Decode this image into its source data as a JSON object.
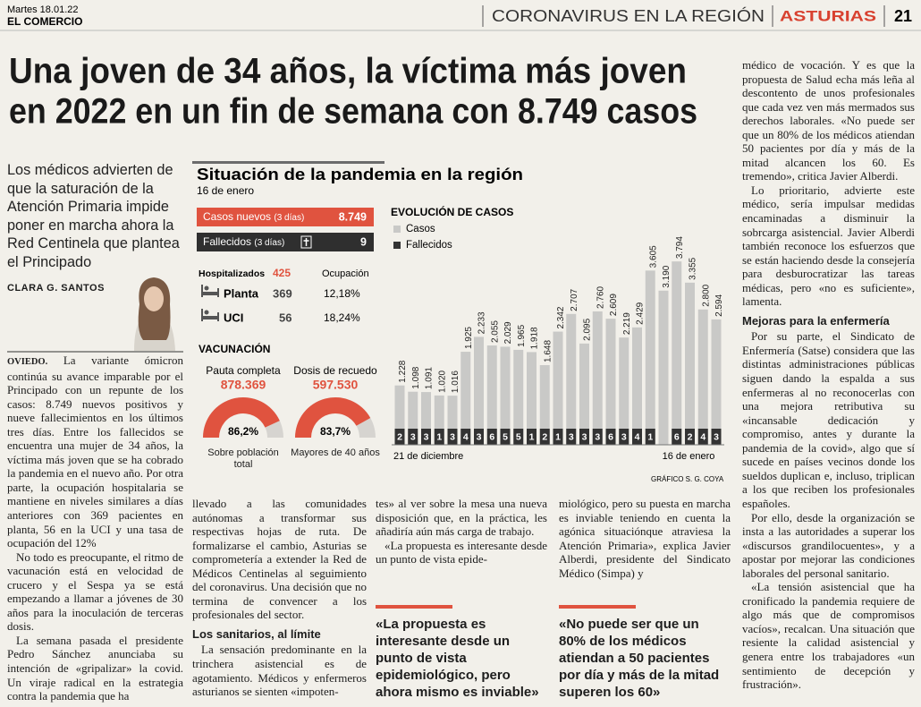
{
  "header": {
    "date": "Martes 18.01.22",
    "paper": "EL COMERCIO",
    "section": "CORONAVIRUS EN LA REGIÓN",
    "region": "ASTURIAS",
    "page": "21"
  },
  "headline": [
    "Una joven de 34 años, la víctima más joven",
    "en 2022 en un fin de semana con 8.749 casos"
  ],
  "deck": "Los médicos advierten de que la saturación de la Atención Primaria impide poner en marcha ahora la Red Centinela que plantea el Principado",
  "byline": "CLARA G. SANTOS",
  "infographic": {
    "title": "Situación de la pandemia en la región",
    "date": "16 de enero",
    "new_cases": {
      "label": "Casos nuevos",
      "period": "(3 días)",
      "value": "8.749"
    },
    "deaths": {
      "label": "Fallecidos",
      "period": "(3 días)",
      "value": "9"
    },
    "hospital": {
      "label": "Hospitalizados",
      "total": "425",
      "occupancy_label": "Ocupación",
      "rows": [
        {
          "label": "Planta",
          "patients": "369",
          "occupancy": "12,18%"
        },
        {
          "label": "UCI",
          "patients": "56",
          "occupancy": "18,24%"
        }
      ]
    },
    "vaccination": {
      "title": "VACUNACIÓN",
      "items": [
        {
          "label": "Pauta completa",
          "count": "878.369",
          "percent": 86.2,
          "percent_label": "86,2%",
          "caption": "Sobre población total"
        },
        {
          "label": "Dosis de recuedo",
          "count": "597.530",
          "percent": 83.7,
          "percent_label": "83,7%",
          "caption": "Mayores de 40 años"
        }
      ]
    },
    "credit": "GRÁFICO S. G. COYA"
  },
  "chart_data": {
    "type": "bar",
    "title": "EVOLUCIÓN DE CASOS",
    "series": [
      {
        "name": "Casos",
        "color": "#c9c9c7",
        "values": [
          1228,
          1098,
          1091,
          1020,
          1016,
          1925,
          2233,
          2055,
          2029,
          1965,
          1918,
          1648,
          2342,
          2707,
          2095,
          2760,
          2609,
          2219,
          2429,
          3605,
          3190,
          3794,
          3355,
          2800,
          2594
        ],
        "value_labels": [
          "1.228",
          "1.098",
          "1.091",
          "1.020",
          "1.016",
          "1.925",
          "2.233",
          "2.055",
          "2.029",
          "1.965",
          "1.918",
          "1.648",
          "2.342",
          "2.707",
          "2.095",
          "2.760",
          "2.609",
          "2.219",
          "2.429",
          "3.605",
          "3.190",
          "3.794",
          "3.355",
          "2.800",
          "2.594"
        ]
      },
      {
        "name": "Fallecidos",
        "color": "#333333",
        "values": [
          2,
          3,
          3,
          1,
          3,
          4,
          3,
          6,
          5,
          5,
          1,
          2,
          1,
          3,
          3,
          3,
          6,
          3,
          4,
          1,
          null,
          6,
          2,
          4,
          3
        ]
      }
    ],
    "ylim": [
      0,
      4000
    ],
    "annotations": [
      "21 de diciembre",
      "16 de enero"
    ]
  },
  "columns": {
    "col1": [
      {
        "dateline": "OVIEDO.",
        "text": "La variante ómicron continúa su avance imparable por el Principado con un repunte de los casos: 8.749 nuevos positivos y nueve fallecimientos en los últimos tres días. Entre los fallecidos se encuentra una mujer de 34 años, la víctima más joven que se ha cobrado la pandemia en el nuevo año. Por otra parte, la ocupación hospitalaria se mantiene en niveles similares a días anteriores con 369 pacientes en planta, 56 en la UCI y una tasa de ocupación del 12%"
      },
      "No todo es preocupante, el ritmo de vacunación está en velocidad de crucero y el Sespa ya se está empezando a llamar a jóvenes de 30 años para la inoculación de terceras dosis.",
      "La semana pasada el presidente Pedro Sánchez anunciaba su intención de «gripalizar» la covid. Un viraje radical en la estrategia contra la pandemia que ha"
    ],
    "col2": [
      {
        "continued": "llevado a las comunidades autónomas a transformar sus respectivas hojas de ruta. De formalizarse el cambio, Asturias se comprometería a extender la Red de Médicos Centinelas al seguimiento del coronavirus. Una decisión que no termina de convencer a los profesionales del sector."
      },
      {
        "heading": "Los sanitarios, al límite"
      },
      "La sensación predominante en la trinchera asistencial es de agotamiento. Médicos y enfermeros asturianos se sienten «impoten-"
    ],
    "col3": [
      {
        "continued": "tes» al ver sobre la mesa una nueva disposición que, en la práctica, les añadiría aún más carga de trabajo."
      },
      "«La propuesta es interesante desde un punto de vista epide-"
    ],
    "col4": [
      {
        "continued": "miológico, pero su puesta en marcha es inviable teniendo en cuenta la agónica situaciónque atraviesa la Atención Primaria», explica Javier Alberdi, presidente del Sindicato Médico (Simpa) y"
      }
    ],
    "col5": [
      {
        "continued": "médico de vocación. Y es que la propuesta de Salud echa más leña al descontento de unos profesionales que cada vez ven más mermados sus derechos laborales. «No puede ser que un 80% de los médicos atiendan 50 pacientes por día y más de la mitad alcancen los 60. Es tremendo», critica Javier Alberdi."
      },
      "Lo prioritario, advierte este médico, sería impulsar medidas encaminadas a disminuir la sobrcarga asistencial. Javier Alberdi también reconoce los esfuerzos que se están haciendo desde la consejería para desburocratizar las tareas médicas, pero «no es suficiente», lamenta.",
      {
        "heading": "Mejoras para la enfermería"
      },
      "Por su parte, el Sindicato de Enfermería (Satse) considera que las distintas administraciones públicas siguen dando la espalda a sus enfermeras al no reconocerlas con una mejora retributiva su «incansable dedicación y compromiso, antes y durante la pandemia de la covid», algo que sí sucede en países vecinos donde los sueldos duplican e, incluso, triplican a los que reciben los profesionales españoles.",
      "Por ello, desde la organización se insta a las autoridades a superar los «discursos grandilocuentes», y a apostar por mejorar las condiciones laborales del personal sanitario.",
      "«La tensión asistencial que ha cronificado la pandemia requiere de algo más que de compromisos vacíos», recalcan. Una situación que resiente la calidad asistencial y genera entre los trabajadores «un sentimiento de decepción y frustración»."
    ]
  },
  "pull_quotes": [
    "«La propuesta es interesante desde un punto de vista epidemiológico, pero ahora mismo es inviable»",
    "«No puede ser que un 80% de los médicos atiendan a 50 pacientes por día y más de la mitad superen los 60»"
  ]
}
